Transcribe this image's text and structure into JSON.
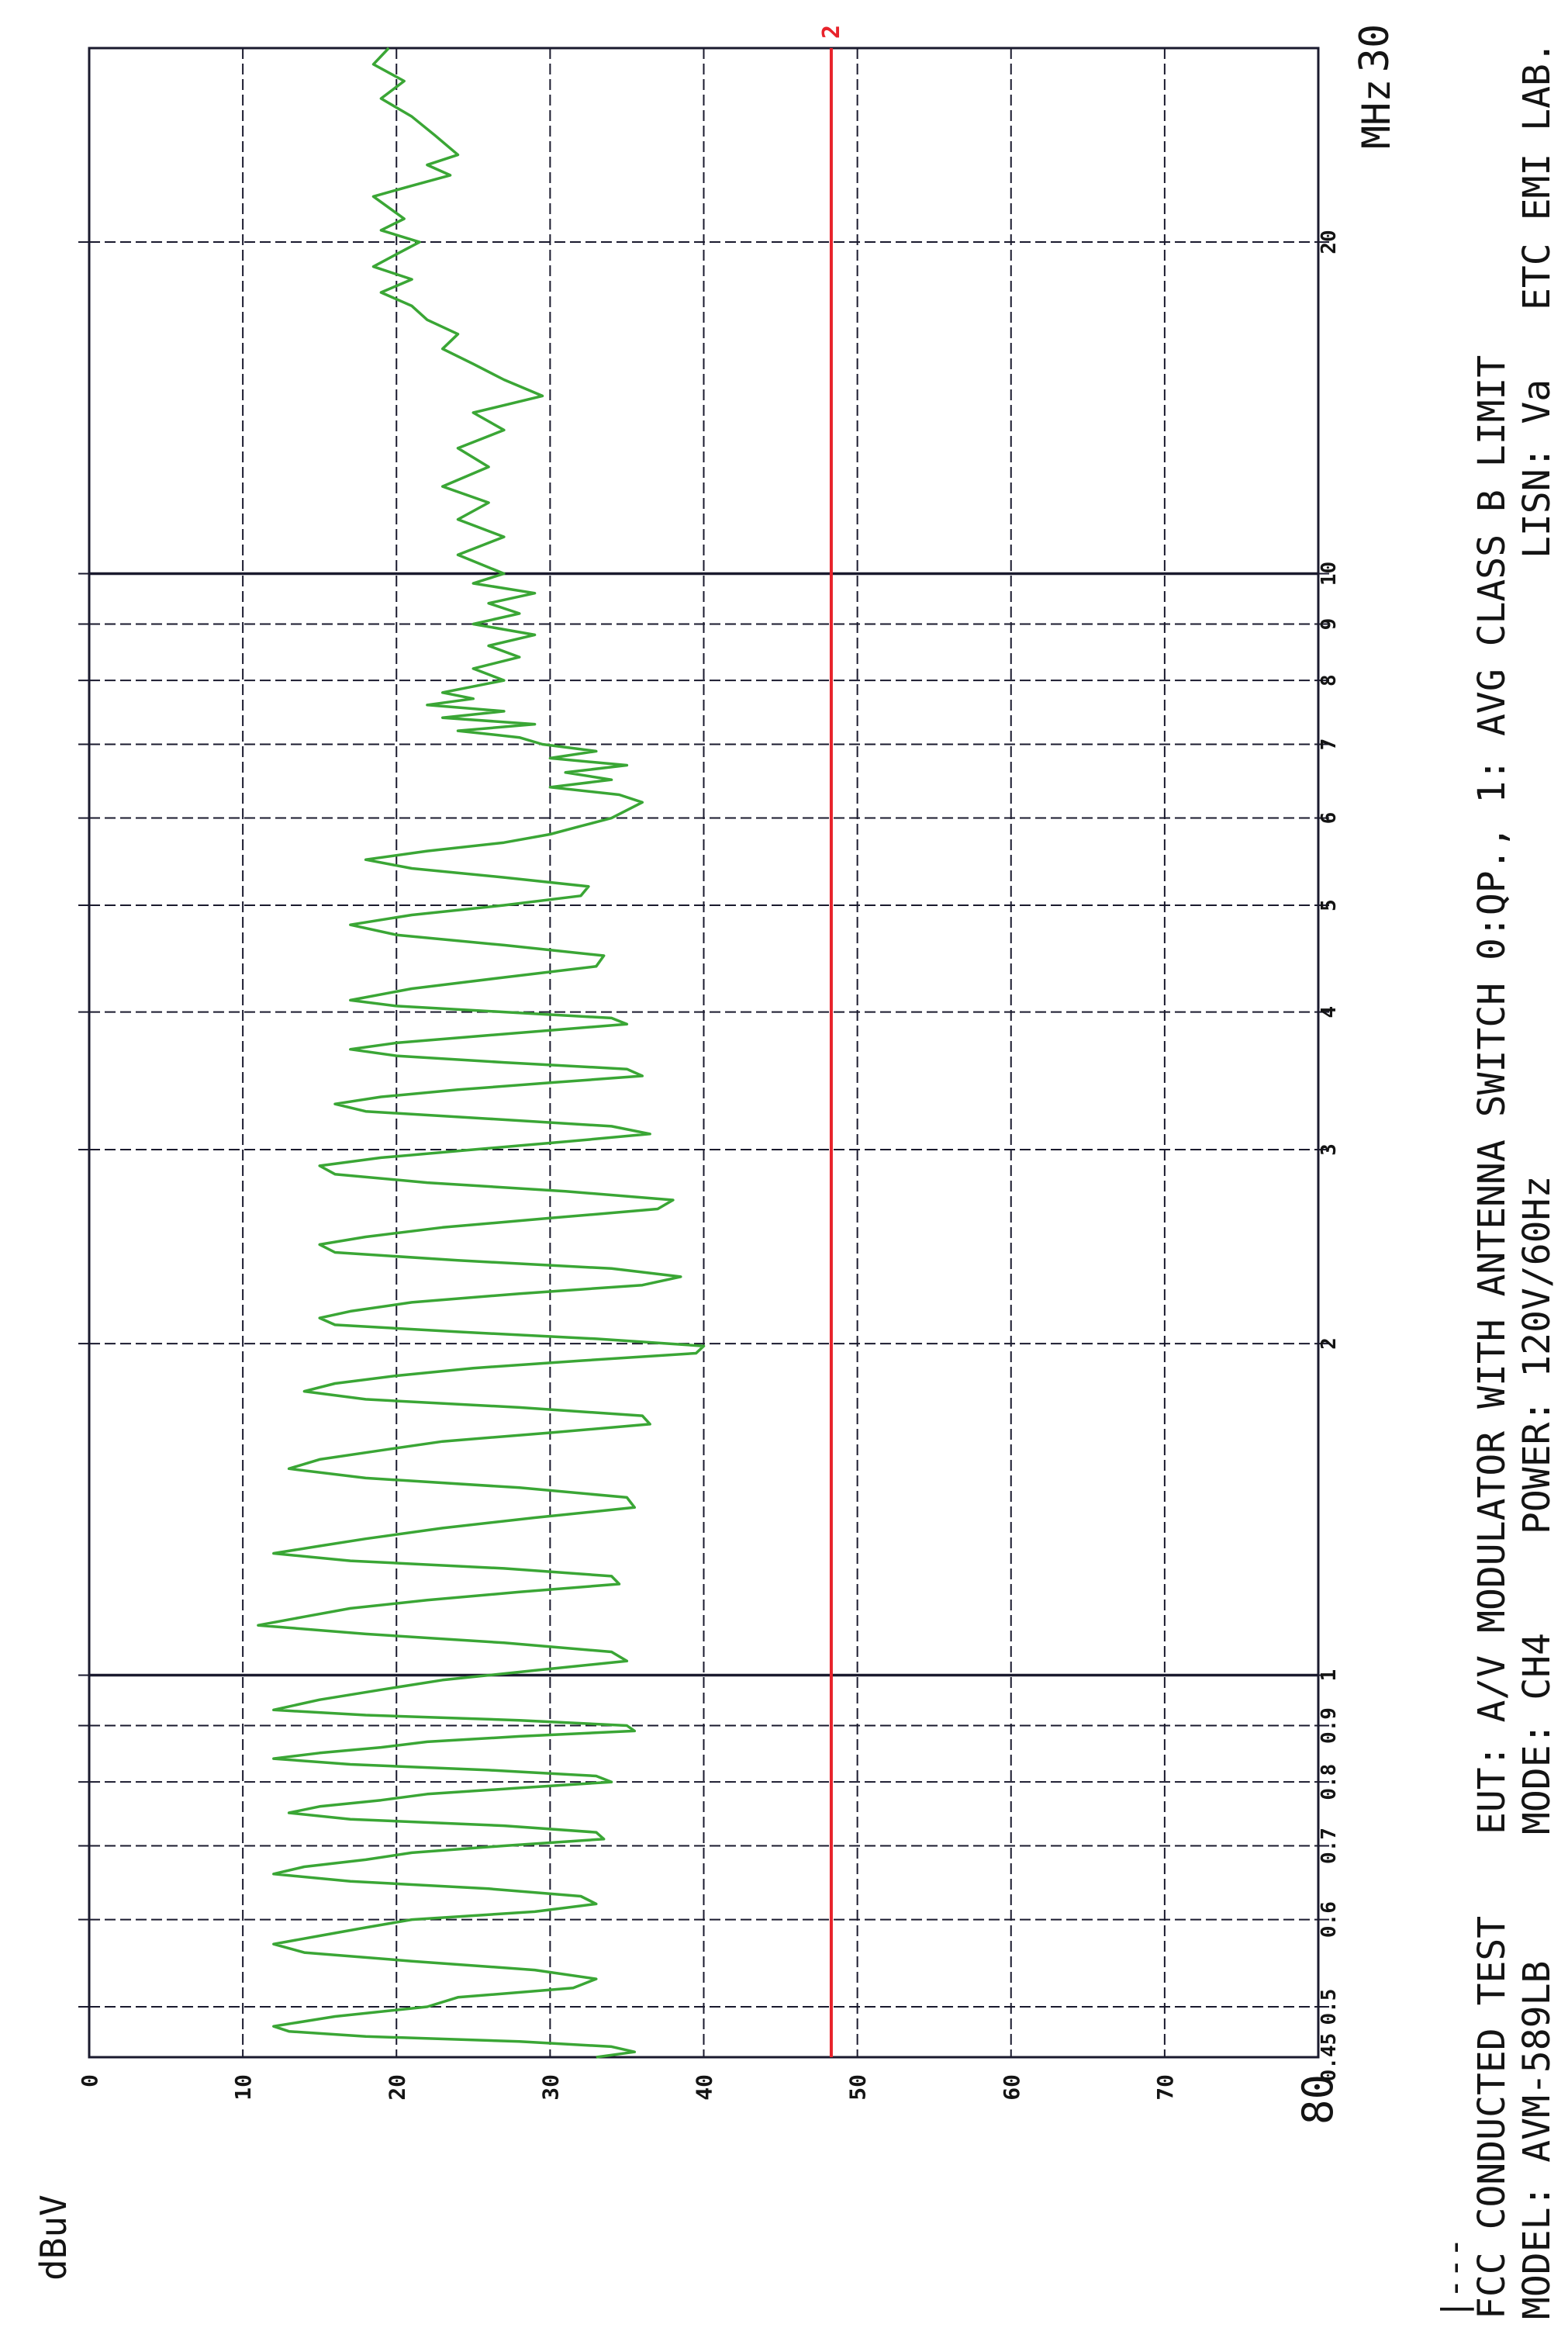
{
  "colors": {
    "grid": "#1a1a2e",
    "trace": "#3aa635",
    "limit": "#e8232b",
    "text": "#141414"
  },
  "chart_data": {
    "type": "line",
    "title": "",
    "xlabel": "MHz",
    "ylabel": "dBuV",
    "xscale": "log",
    "xlim": [
      0.45,
      30
    ],
    "ylim": [
      0,
      80
    ],
    "grid": true,
    "orientation": "rotated-90-clockwise",
    "x_ticks": [
      {
        "v": 0.45,
        "label": "0.45"
      },
      {
        "v": 0.5,
        "label": "0.5"
      },
      {
        "v": 0.6,
        "label": "0.6"
      },
      {
        "v": 0.7,
        "label": "0.7"
      },
      {
        "v": 0.8,
        "label": "0.8"
      },
      {
        "v": 0.9,
        "label": "0.9"
      },
      {
        "v": 1,
        "label": "1"
      },
      {
        "v": 2,
        "label": "2"
      },
      {
        "v": 3,
        "label": "3"
      },
      {
        "v": 4,
        "label": "4"
      },
      {
        "v": 5,
        "label": "5"
      },
      {
        "v": 6,
        "label": "6"
      },
      {
        "v": 7,
        "label": "7"
      },
      {
        "v": 8,
        "label": "8"
      },
      {
        "v": 9,
        "label": "9"
      },
      {
        "v": 10,
        "label": "10"
      },
      {
        "v": 20,
        "label": "20"
      },
      {
        "v": 30,
        "label": "30"
      }
    ],
    "y_ticks": [
      {
        "v": 0,
        "label": "0"
      },
      {
        "v": 10,
        "label": "10"
      },
      {
        "v": 20,
        "label": "20"
      },
      {
        "v": 30,
        "label": "30"
      },
      {
        "v": 40,
        "label": "40"
      },
      {
        "v": 50,
        "label": "50"
      },
      {
        "v": 60,
        "label": "60"
      },
      {
        "v": 70,
        "label": "70"
      },
      {
        "v": 80,
        "label": "80"
      }
    ],
    "limit_line": {
      "label": "2",
      "y": 48.3
    },
    "series": [
      {
        "points": [
          [
            0.45,
            33
          ],
          [
            0.455,
            35.5
          ],
          [
            0.46,
            34
          ],
          [
            0.465,
            28
          ],
          [
            0.47,
            18
          ],
          [
            0.475,
            13
          ],
          [
            0.48,
            12
          ],
          [
            0.49,
            16
          ],
          [
            0.5,
            22
          ],
          [
            0.51,
            24
          ],
          [
            0.52,
            31.5
          ],
          [
            0.53,
            33
          ],
          [
            0.54,
            29
          ],
          [
            0.55,
            21
          ],
          [
            0.56,
            14
          ],
          [
            0.57,
            12
          ],
          [
            0.58,
            15
          ],
          [
            0.59,
            18
          ],
          [
            0.6,
            21
          ],
          [
            0.61,
            29
          ],
          [
            0.62,
            33
          ],
          [
            0.63,
            32
          ],
          [
            0.64,
            26
          ],
          [
            0.65,
            17
          ],
          [
            0.66,
            12
          ],
          [
            0.67,
            14
          ],
          [
            0.68,
            18
          ],
          [
            0.69,
            21
          ],
          [
            0.7,
            27
          ],
          [
            0.71,
            33.5
          ],
          [
            0.72,
            33
          ],
          [
            0.73,
            27
          ],
          [
            0.74,
            17
          ],
          [
            0.75,
            13
          ],
          [
            0.76,
            15
          ],
          [
            0.77,
            19
          ],
          [
            0.78,
            22
          ],
          [
            0.79,
            28
          ],
          [
            0.8,
            34
          ],
          [
            0.81,
            33
          ],
          [
            0.82,
            26
          ],
          [
            0.83,
            17
          ],
          [
            0.84,
            12
          ],
          [
            0.85,
            15
          ],
          [
            0.86,
            19
          ],
          [
            0.87,
            22
          ],
          [
            0.88,
            28
          ],
          [
            0.89,
            35.5
          ],
          [
            0.9,
            35
          ],
          [
            0.91,
            28
          ],
          [
            0.92,
            18
          ],
          [
            0.93,
            12
          ],
          [
            0.95,
            15
          ],
          [
            0.97,
            19
          ],
          [
            0.99,
            23
          ],
          [
            1.01,
            29
          ],
          [
            1.03,
            35
          ],
          [
            1.05,
            34
          ],
          [
            1.07,
            27
          ],
          [
            1.09,
            18
          ],
          [
            1.11,
            11
          ],
          [
            1.13,
            14
          ],
          [
            1.15,
            17
          ],
          [
            1.17,
            22
          ],
          [
            1.19,
            28
          ],
          [
            1.21,
            34.5
          ],
          [
            1.23,
            34
          ],
          [
            1.25,
            27
          ],
          [
            1.27,
            17
          ],
          [
            1.29,
            12
          ],
          [
            1.31,
            15
          ],
          [
            1.33,
            18
          ],
          [
            1.36,
            23
          ],
          [
            1.39,
            29
          ],
          [
            1.42,
            35.5
          ],
          [
            1.45,
            35
          ],
          [
            1.48,
            28
          ],
          [
            1.51,
            18
          ],
          [
            1.54,
            13
          ],
          [
            1.57,
            15
          ],
          [
            1.6,
            19
          ],
          [
            1.63,
            23
          ],
          [
            1.66,
            30
          ],
          [
            1.69,
            36.5
          ],
          [
            1.72,
            36
          ],
          [
            1.75,
            28
          ],
          [
            1.78,
            18
          ],
          [
            1.81,
            14
          ],
          [
            1.84,
            16
          ],
          [
            1.87,
            20
          ],
          [
            1.9,
            25
          ],
          [
            1.93,
            32
          ],
          [
            1.96,
            39.5
          ],
          [
            1.99,
            40
          ],
          [
            2.02,
            33
          ],
          [
            2.05,
            24
          ],
          [
            2.08,
            16
          ],
          [
            2.11,
            15
          ],
          [
            2.14,
            17
          ],
          [
            2.18,
            21
          ],
          [
            2.22,
            28
          ],
          [
            2.26,
            36
          ],
          [
            2.3,
            38.5
          ],
          [
            2.34,
            34
          ],
          [
            2.38,
            24
          ],
          [
            2.42,
            16
          ],
          [
            2.46,
            15
          ],
          [
            2.5,
            18
          ],
          [
            2.55,
            23
          ],
          [
            2.6,
            30
          ],
          [
            2.65,
            37
          ],
          [
            2.7,
            38
          ],
          [
            2.75,
            31
          ],
          [
            2.8,
            22
          ],
          [
            2.85,
            16
          ],
          [
            2.9,
            15
          ],
          [
            2.95,
            19
          ],
          [
            3.0,
            25
          ],
          [
            3.05,
            31
          ],
          [
            3.1,
            36.5
          ],
          [
            3.15,
            34
          ],
          [
            3.2,
            26
          ],
          [
            3.25,
            18
          ],
          [
            3.3,
            16
          ],
          [
            3.35,
            19
          ],
          [
            3.4,
            24
          ],
          [
            3.45,
            30
          ],
          [
            3.5,
            36
          ],
          [
            3.55,
            35
          ],
          [
            3.6,
            27
          ],
          [
            3.65,
            20
          ],
          [
            3.7,
            17
          ],
          [
            3.75,
            20
          ],
          [
            3.8,
            25
          ],
          [
            3.85,
            30
          ],
          [
            3.9,
            35
          ],
          [
            3.95,
            34
          ],
          [
            4.0,
            27
          ],
          [
            4.05,
            20
          ],
          [
            4.1,
            17
          ],
          [
            4.2,
            21
          ],
          [
            4.3,
            27
          ],
          [
            4.4,
            33
          ],
          [
            4.5,
            33.5
          ],
          [
            4.6,
            27
          ],
          [
            4.7,
            20
          ],
          [
            4.8,
            17
          ],
          [
            4.9,
            21
          ],
          [
            5.0,
            27
          ],
          [
            5.1,
            32
          ],
          [
            5.2,
            32.5
          ],
          [
            5.3,
            27
          ],
          [
            5.4,
            21
          ],
          [
            5.5,
            18
          ],
          [
            5.6,
            22
          ],
          [
            5.7,
            27
          ],
          [
            5.8,
            30
          ],
          [
            5.9,
            32
          ],
          [
            6.0,
            34
          ],
          [
            6.1,
            35
          ],
          [
            6.2,
            36
          ],
          [
            6.3,
            34.5
          ],
          [
            6.4,
            30
          ],
          [
            6.5,
            34
          ],
          [
            6.6,
            31
          ],
          [
            6.7,
            35
          ],
          [
            6.8,
            30
          ],
          [
            6.9,
            33
          ],
          [
            7.0,
            29.5
          ],
          [
            7.1,
            28
          ],
          [
            7.2,
            24
          ],
          [
            7.3,
            29
          ],
          [
            7.4,
            23
          ],
          [
            7.5,
            27
          ],
          [
            7.6,
            22
          ],
          [
            7.7,
            25
          ],
          [
            7.8,
            23
          ],
          [
            8.0,
            27
          ],
          [
            8.2,
            25
          ],
          [
            8.4,
            28
          ],
          [
            8.6,
            26
          ],
          [
            8.8,
            29
          ],
          [
            9.0,
            25
          ],
          [
            9.2,
            28
          ],
          [
            9.4,
            26
          ],
          [
            9.6,
            29
          ],
          [
            9.8,
            25
          ],
          [
            10.0,
            27
          ],
          [
            10.4,
            24
          ],
          [
            10.8,
            27
          ],
          [
            11.2,
            24
          ],
          [
            11.6,
            26
          ],
          [
            12.0,
            23
          ],
          [
            12.5,
            26
          ],
          [
            13.0,
            24
          ],
          [
            13.5,
            27
          ],
          [
            14.0,
            25
          ],
          [
            14.5,
            29.5
          ],
          [
            15.0,
            27
          ],
          [
            15.5,
            25
          ],
          [
            16.0,
            23
          ],
          [
            16.5,
            24
          ],
          [
            17.0,
            22
          ],
          [
            17.5,
            21
          ],
          [
            18.0,
            19
          ],
          [
            18.5,
            21
          ],
          [
            19.0,
            18.5
          ],
          [
            19.5,
            20
          ],
          [
            20.0,
            21.5
          ],
          [
            20.5,
            19
          ],
          [
            21.0,
            20.5
          ],
          [
            22.0,
            18.5
          ],
          [
            22.5,
            21
          ],
          [
            23.0,
            23.5
          ],
          [
            23.5,
            22
          ],
          [
            24.0,
            24
          ],
          [
            25.0,
            22.5
          ],
          [
            26.0,
            21
          ],
          [
            27.0,
            19
          ],
          [
            28.0,
            20.5
          ],
          [
            29.0,
            18.5
          ],
          [
            30.0,
            19.5
          ]
        ]
      }
    ]
  },
  "footer": {
    "col1_line1": "FCC CONDUCTED TEST",
    "col1_line2": "MODEL: AVM-589LB",
    "col2_line1": "EUT: A/V MODULATOR WITH ANTENNA SWITCH 0:QP., 1: AVG CLASS B LIMIT",
    "col2_mode": "MODE: CH4",
    "col2_power": "POWER: 120V/60Hz",
    "col2_lisn": "LISN: Va",
    "col2_lab": "ETC EMI LAB."
  },
  "legend_mark": "|---"
}
